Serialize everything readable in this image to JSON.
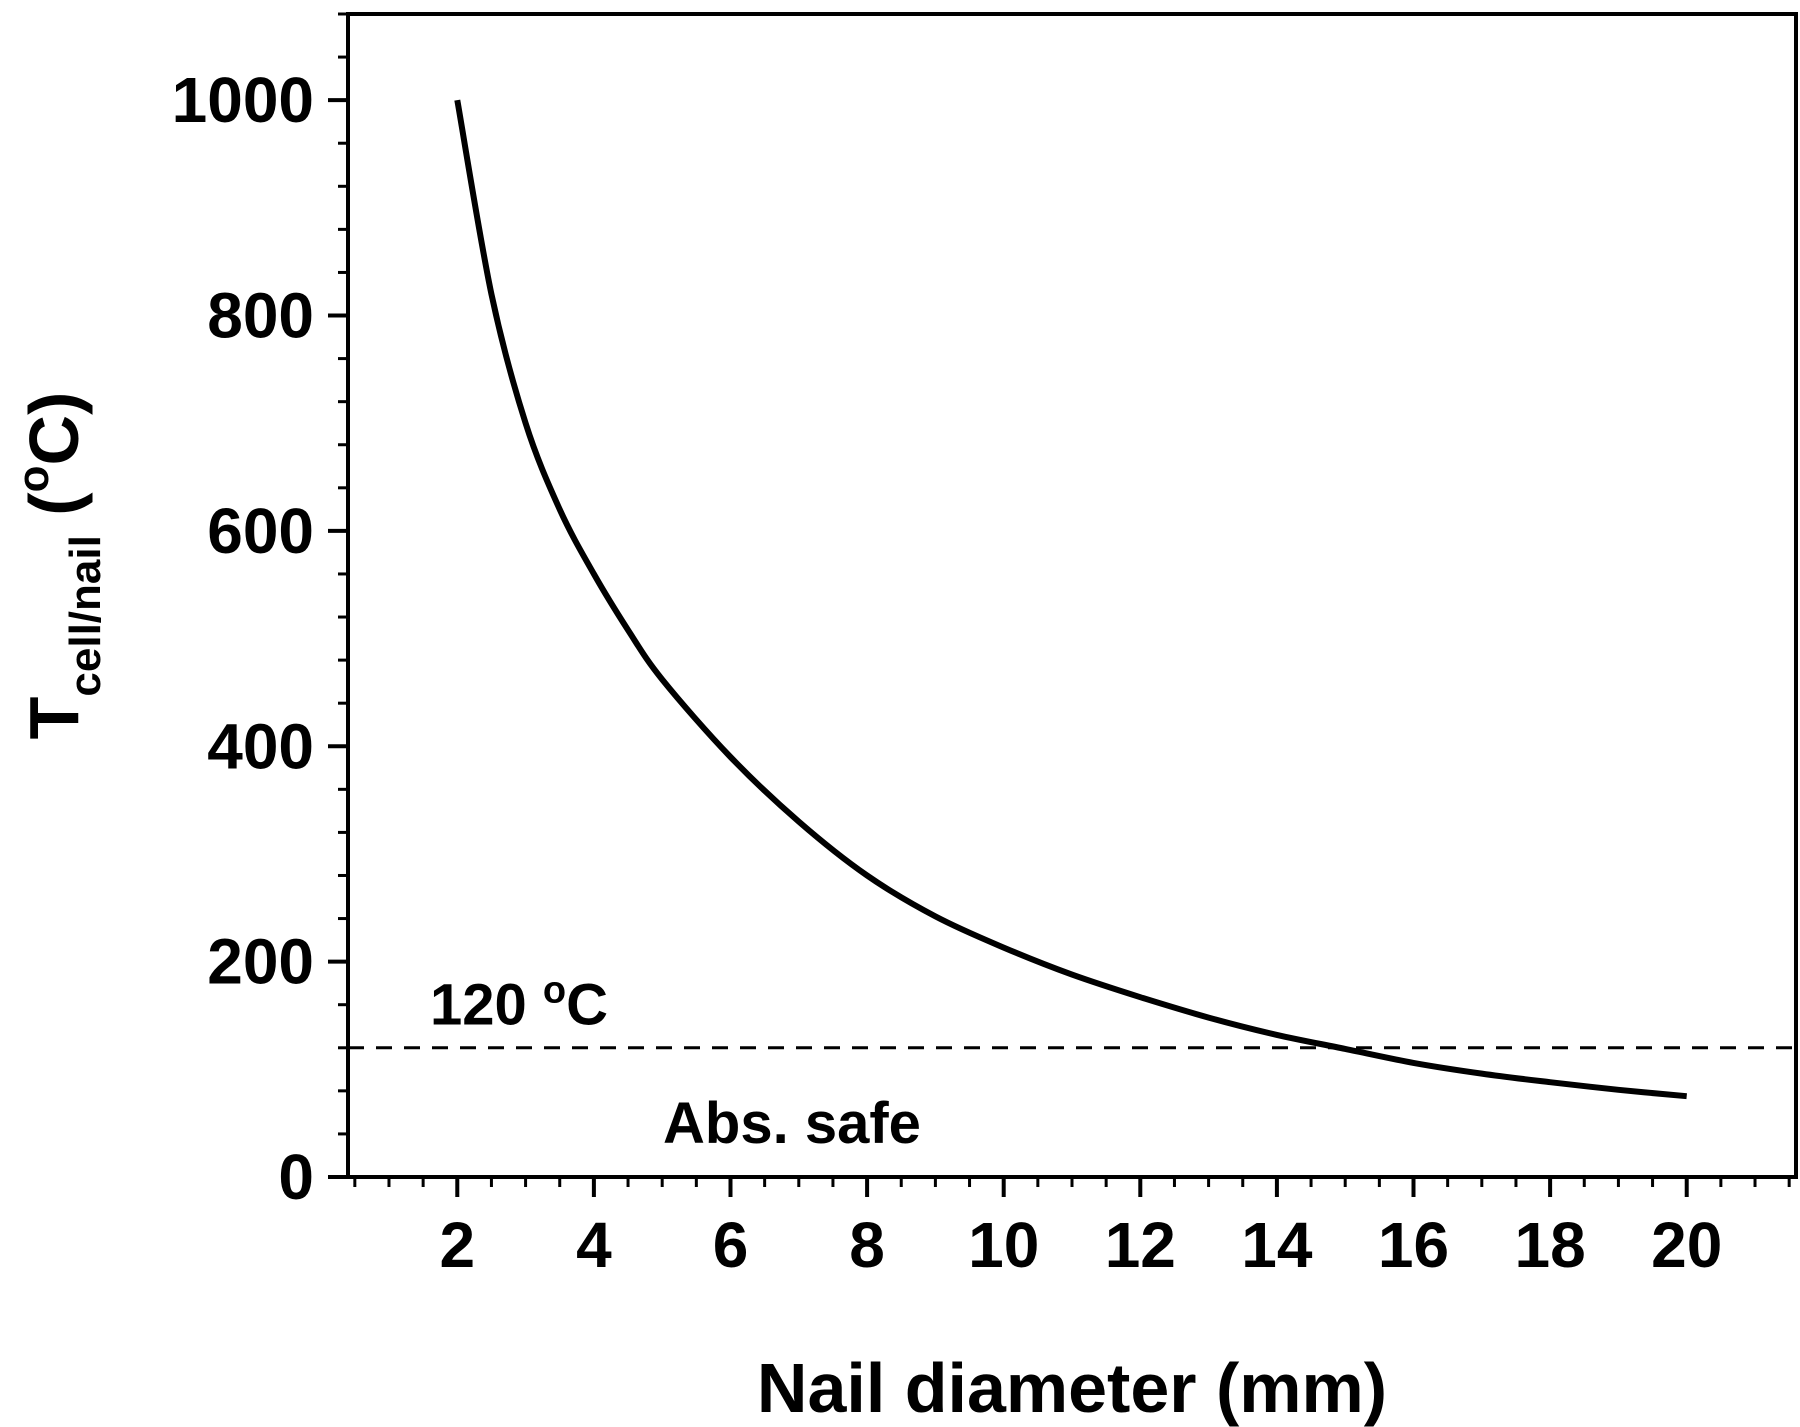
{
  "chart_data": {
    "type": "line",
    "title": "",
    "xlabel": "Nail diameter (mm)",
    "ylabel": {
      "main": "T",
      "subscript": "cell/nail",
      "open": " (",
      "superscript": "o",
      "close": "C)"
    },
    "xlim": [
      0.4,
      21.6
    ],
    "ylim": [
      0,
      1080
    ],
    "xticks": [
      2,
      4,
      6,
      8,
      10,
      12,
      14,
      16,
      18,
      20
    ],
    "yticks": [
      0,
      200,
      400,
      600,
      800,
      1000
    ],
    "grid": false,
    "series": [
      {
        "x": [
          2,
          2.5,
          3,
          3.5,
          4,
          4.5,
          5,
          6,
          7,
          8,
          9,
          10,
          11,
          12,
          13,
          14,
          15,
          16,
          17,
          18,
          19,
          20
        ],
        "y": [
          1000,
          820,
          700,
          620,
          560,
          508,
          462,
          390,
          330,
          280,
          242,
          213,
          188,
          167,
          148,
          132,
          119,
          106,
          96,
          88,
          81,
          75
        ],
        "color": "#000000"
      }
    ],
    "reference_line": {
      "y": 120,
      "style": "dashed",
      "label_value": "120 ",
      "label_sup": "o",
      "label_unit": "C"
    },
    "region_label": "Abs. safe"
  }
}
